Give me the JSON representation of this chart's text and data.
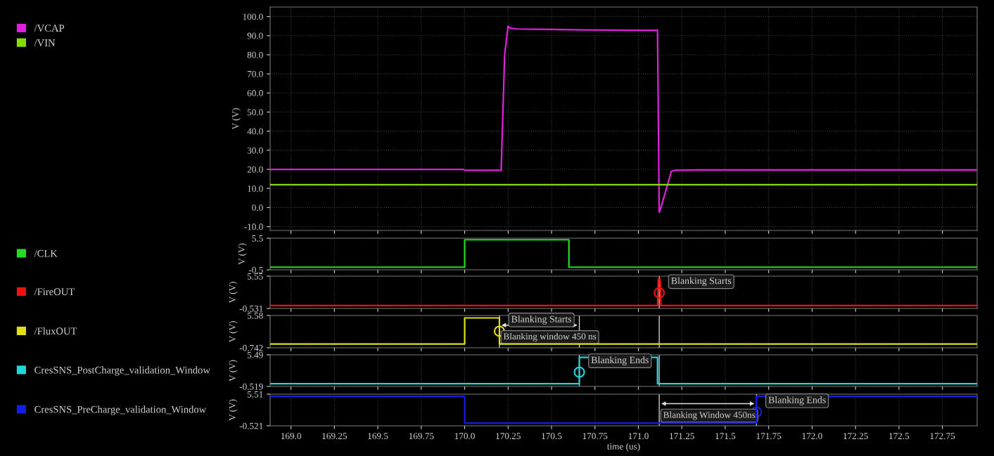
{
  "chart_data": [
    {
      "type": "line",
      "ylabel": "V (V)",
      "legend": "top left",
      "grid": true,
      "tick_labels": "y",
      "xlim": [
        168.88,
        172.95
      ],
      "xticks": [
        169,
        169.25,
        169.5,
        169.75,
        170,
        170.25,
        170.5,
        170.75,
        171,
        171.25,
        171.5,
        171.75,
        172,
        172.25,
        172.5,
        172.75
      ],
      "ylim": [
        -12,
        105
      ],
      "yticks": [
        {
          "value": -10,
          "label": "-10.0"
        },
        {
          "value": 0,
          "label": "0.0"
        },
        {
          "value": 10,
          "label": "10.0"
        },
        {
          "value": 20,
          "label": "20.0"
        },
        {
          "value": 30,
          "label": "30.0"
        },
        {
          "value": 40,
          "label": "40.0"
        },
        {
          "value": 50,
          "label": "50.0"
        },
        {
          "value": 60,
          "label": "60.0"
        },
        {
          "value": 70,
          "label": "70.0"
        },
        {
          "value": 80,
          "label": "80.0"
        },
        {
          "value": 90,
          "label": "90.0"
        },
        {
          "value": 100,
          "label": "100.0"
        }
      ],
      "series": [
        {
          "name": "/VCAP",
          "color": "#e020e0",
          "x": [
            168.88,
            169.99,
            170.0,
            170.21,
            170.23,
            170.25,
            170.26,
            170.3,
            170.5,
            170.7,
            171.0,
            171.11,
            171.12,
            171.13,
            171.19,
            171.21,
            171.35,
            172.95
          ],
          "values": [
            20,
            20,
            19.5,
            19.5,
            80,
            95,
            94,
            93.5,
            93.3,
            93,
            92.8,
            92.8,
            -2.5,
            0,
            19,
            19.5,
            19.7,
            19.7
          ]
        },
        {
          "name": "/VIN",
          "color": "#88dd00",
          "x": [
            168.88,
            172.95
          ],
          "values": [
            12,
            12
          ]
        }
      ]
    },
    {
      "type": "line",
      "ylabel": "V (V)",
      "legend": "left",
      "grid": true,
      "tick_labels": "y",
      "xlim": [
        168.88,
        172.95
      ],
      "xticks": [
        169,
        169.25,
        169.5,
        169.75,
        170,
        170.25,
        170.5,
        170.75,
        171,
        171.25,
        171.5,
        171.75,
        172,
        172.25,
        172.5,
        172.75
      ],
      "ylim": [
        -0.5,
        5.5
      ],
      "yticks": [
        -0.5,
        5.5
      ],
      "series": [
        {
          "name": "/CLK",
          "color": "#22dd22",
          "x": [
            168.88,
            170.0,
            170.0,
            170.6,
            170.6,
            172.95
          ],
          "values": [
            0,
            0,
            5.2,
            5.2,
            0,
            0
          ]
        }
      ]
    },
    {
      "type": "line",
      "ylabel": "V (V)",
      "legend": "left",
      "grid": true,
      "tick_labels": "y",
      "xlim": [
        168.88,
        172.95
      ],
      "xticks": [
        169,
        169.25,
        169.5,
        169.75,
        170,
        170.25,
        170.5,
        170.75,
        171,
        171.25,
        171.5,
        171.75,
        172,
        172.25,
        172.5,
        172.75
      ],
      "ylim": [
        -0.531,
        5.55
      ],
      "yticks": [
        -0.531,
        5.55
      ],
      "series": [
        {
          "name": "/FireOUT",
          "color": "#ee1111",
          "x": [
            168.88,
            171.11,
            171.115,
            171.125,
            171.13,
            172.95
          ],
          "values": [
            0,
            0,
            5.0,
            5.0,
            0,
            0
          ]
        }
      ],
      "ref_lines": [
        {
          "axis": "x",
          "value": 171.12,
          "color": "#e0e0e0"
        }
      ],
      "annotations": [
        {
          "text": "Blanking Starts",
          "x": 171.12,
          "y": 2.4
        }
      ]
    },
    {
      "type": "line",
      "ylabel": "V (V)",
      "legend": "left",
      "grid": true,
      "tick_labels": "y",
      "xlim": [
        168.88,
        172.95
      ],
      "xticks": [
        169,
        169.25,
        169.5,
        169.75,
        170,
        170.25,
        170.5,
        170.75,
        171,
        171.25,
        171.5,
        171.75,
        172,
        172.25,
        172.5,
        172.75
      ],
      "ylim": [
        -0.742,
        5.58
      ],
      "yticks": [
        -0.742,
        5.58
      ],
      "series": [
        {
          "name": "/FluxOUT",
          "color": "#e0e010",
          "x": [
            168.88,
            170.0,
            170.0,
            170.2,
            170.2,
            172.95
          ],
          "values": [
            0,
            0,
            5.1,
            5.1,
            0,
            0
          ]
        }
      ],
      "ref_lines": [
        {
          "axis": "x",
          "value": 170.2,
          "color": "#e0e0e0"
        },
        {
          "axis": "x",
          "value": 170.66,
          "color": "#e0e0e0"
        },
        {
          "axis": "x",
          "value": 171.12,
          "color": "#e0e0e0"
        }
      ],
      "annotations": [
        {
          "text": "Blanking Starts",
          "x": 170.2,
          "y": 2.5
        },
        "Blanking window 450 ns"
      ]
    },
    {
      "type": "line",
      "ylabel": "V (V)",
      "legend": "left",
      "grid": true,
      "tick_labels": "y",
      "xlim": [
        168.88,
        172.95
      ],
      "xticks": [
        169,
        169.25,
        169.5,
        169.75,
        170,
        170.25,
        170.5,
        170.75,
        171,
        171.25,
        171.5,
        171.75,
        172,
        172.25,
        172.5,
        172.75
      ],
      "ylim": [
        -0.519,
        5.49
      ],
      "yticks": [
        -0.519,
        5.49
      ],
      "series": [
        {
          "name": "CresSNS_PostCharge_validation_Window",
          "color": "#20d8d8",
          "x": [
            168.88,
            170.66,
            170.66,
            171.11,
            171.11,
            172.95
          ],
          "values": [
            0,
            0,
            5.0,
            5.0,
            0,
            0
          ]
        }
      ],
      "ref_lines": [
        {
          "axis": "x",
          "value": 170.66,
          "color": "#e0e0e0"
        },
        {
          "axis": "x",
          "value": 171.12,
          "color": "#e0e0e0"
        }
      ],
      "annotations": [
        {
          "text": "Blanking Ends",
          "x": 170.66,
          "y": 2.2
        }
      ]
    },
    {
      "type": "line",
      "ylabel": "V (V)",
      "xlabel": "time (us)",
      "legend": "left",
      "grid": true,
      "xlim": [
        168.88,
        172.95
      ],
      "xticks": [
        {
          "value": 169,
          "label": "169.0"
        },
        169.25,
        169.5,
        169.75,
        {
          "value": 170,
          "label": "170.0"
        },
        170.25,
        170.5,
        170.75,
        {
          "value": 171,
          "label": "171.0"
        },
        171.25,
        171.5,
        171.75,
        {
          "value": 172,
          "label": "172.0"
        },
        172.25,
        172.5,
        172.75
      ],
      "ylim": [
        -0.521,
        5.51
      ],
      "yticks": [
        -0.521,
        5.51
      ],
      "series": [
        {
          "name": "CresSNS_PreCharge_validation_Window",
          "color": "#1020e0",
          "x": [
            168.88,
            170.0,
            170.0,
            171.68,
            171.68,
            172.95
          ],
          "values": [
            5.1,
            5.1,
            0,
            0,
            5.1,
            5.1
          ]
        }
      ],
      "ref_lines": [
        {
          "axis": "x",
          "value": 171.12,
          "color": "#e0e0e0"
        },
        {
          "axis": "x",
          "value": 171.68,
          "color": "#e0e0e0"
        }
      ],
      "annotations": [
        "Blanking Window 450ns",
        {
          "text": "Blanking Ends",
          "x": 171.68,
          "y": 2.1
        }
      ]
    }
  ]
}
